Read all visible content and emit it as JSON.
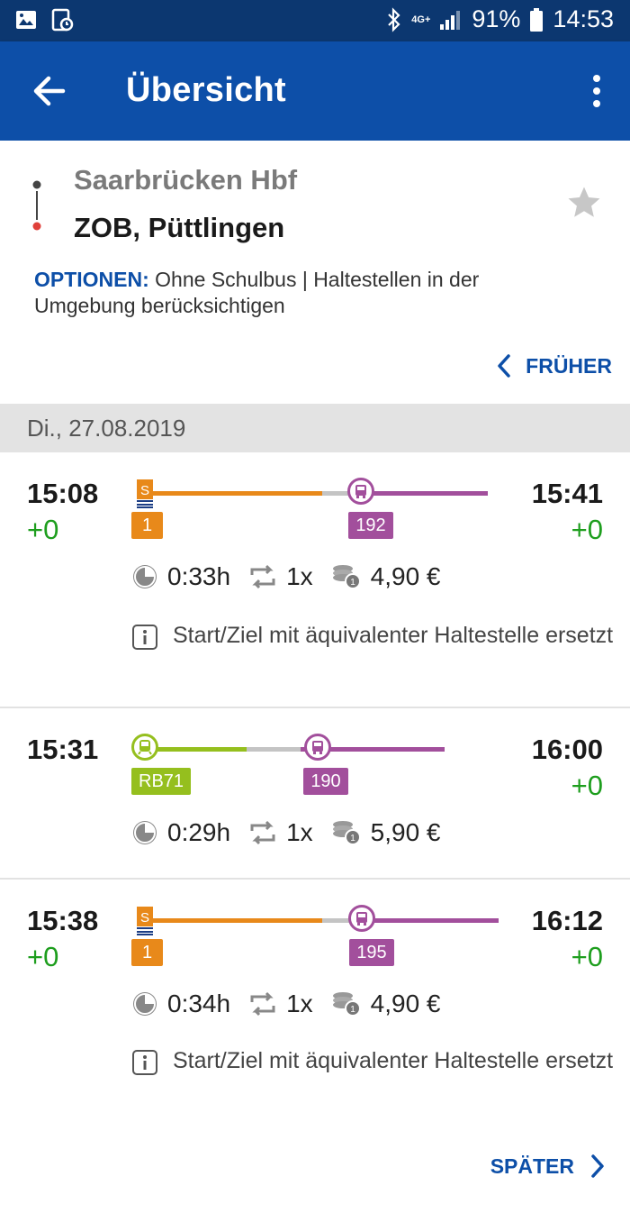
{
  "status_bar": {
    "network": "4G+",
    "battery": "91%",
    "time": "14:53"
  },
  "app_bar": {
    "title": "Übersicht"
  },
  "route": {
    "origin": "Saarbrücken Hbf",
    "destination": "ZOB, Püttlingen",
    "options_label": "OPTIONEN:",
    "options_text": "Ohne Schulbus | Haltestellen in der Umgebung berücksichtigen",
    "earlier_label": "FRÜHER"
  },
  "date": "Di., 27.08.2019",
  "trips": [
    {
      "departure": "15:08",
      "departure_delay": "+0",
      "arrival": "15:41",
      "arrival_delay": "+0",
      "legs": [
        {
          "mode": "s-bahn",
          "label": "1",
          "color": "#e8891a"
        },
        {
          "mode": "bus",
          "label": "192",
          "color": "#a24f9c"
        }
      ],
      "duration": "0:33h",
      "changes": "1x",
      "price": "4,90 €",
      "note": "Start/Ziel mit äquivalenter Haltestelle ersetzt"
    },
    {
      "departure": "15:31",
      "arrival": "16:00",
      "arrival_delay": "+0",
      "legs": [
        {
          "mode": "train",
          "label": "RB71",
          "color": "#95bf1e"
        },
        {
          "mode": "bus",
          "label": "190",
          "color": "#a24f9c"
        }
      ],
      "duration": "0:29h",
      "changes": "1x",
      "price": "5,90 €"
    },
    {
      "departure": "15:38",
      "departure_delay": "+0",
      "arrival": "16:12",
      "arrival_delay": "+0",
      "legs": [
        {
          "mode": "s-bahn",
          "label": "1",
          "color": "#e8891a"
        },
        {
          "mode": "bus",
          "label": "195",
          "color": "#a24f9c"
        }
      ],
      "duration": "0:34h",
      "changes": "1x",
      "price": "4,90 €",
      "note": "Start/Ziel mit äquivalenter Haltestelle ersetzt"
    }
  ],
  "later_label": "SPÄTER",
  "colors": {
    "status_bar": "#0c3770",
    "app_bar": "#0d4fa8",
    "accent": "#0d4fa8",
    "delay_ok": "#1e9e1e",
    "s_bahn": "#e8891a",
    "bus": "#a24f9c",
    "regional_train": "#95bf1e"
  }
}
